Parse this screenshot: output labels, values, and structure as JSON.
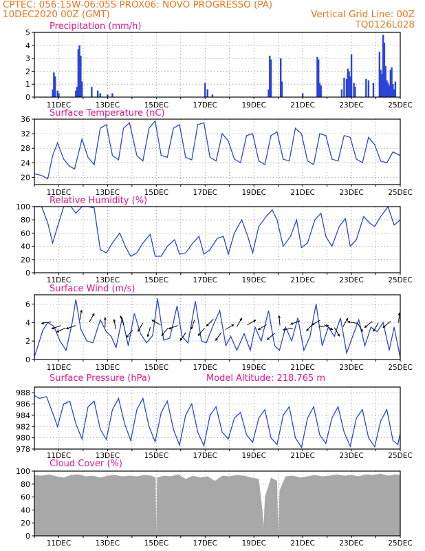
{
  "header": {
    "line1_left": "CPTEC:    056:15W-06:05S    PROX06: NOVO PROGRESSO (PA)",
    "line2_left": "10DEC2020 00Z (GMT)",
    "line2_right": "Vertical Grid Line: 00Z",
    "line3_right": "TQ0126L028"
  },
  "colors": {
    "header_text": "#e8761b",
    "panel_title": "#e0168c",
    "series_line": "#2b45d6",
    "precip_bars": "#2b45d6",
    "wind_arrows": "#000000",
    "cloud_fill": "#a8a8a8",
    "grid": "#9a9a9a"
  },
  "x_axis": {
    "start": "10DEC2020 00Z",
    "end": "25DEC2020 00Z",
    "tick_labels": [
      "11DEC",
      "13DEC",
      "15DEC",
      "17DEC",
      "19DEC",
      "21DEC",
      "23DEC",
      "25DEC"
    ],
    "tick_days": [
      1,
      3,
      5,
      7,
      9,
      11,
      13,
      15
    ],
    "vertical_grid": "daily at 00Z"
  },
  "chart_data": [
    {
      "type": "bar",
      "title": "Precipitation (mm/h)",
      "x_unit": "days since 10DEC2020 00Z",
      "ylim": [
        0,
        5
      ],
      "yticks": [
        0,
        1,
        2,
        3,
        4,
        5
      ],
      "grid": true,
      "x": [
        0.75,
        0.8,
        0.85,
        0.95,
        1.0,
        1.7,
        1.75,
        1.8,
        1.85,
        1.9,
        1.95,
        2.35,
        2.6,
        2.7,
        3.0,
        3.2,
        7.0,
        7.1,
        7.3,
        9.6,
        9.65,
        9.7,
        10.1,
        10.15,
        11.0,
        11.6,
        11.65,
        11.7,
        11.75,
        12.6,
        12.7,
        12.8,
        12.85,
        12.9,
        12.95,
        13.0,
        13.1,
        13.15,
        13.6,
        13.7,
        13.9,
        14.15,
        14.2,
        14.25,
        14.3,
        14.35,
        14.4,
        14.45,
        14.5,
        14.55,
        14.6,
        14.65,
        14.7,
        14.75,
        14.8
      ],
      "values": [
        0.6,
        1.9,
        1.6,
        0.5,
        0.3,
        0.5,
        0.8,
        3.7,
        4.0,
        3.2,
        1.2,
        0.8,
        0.5,
        0.3,
        0.2,
        0.3,
        1.1,
        0.6,
        0.2,
        0.6,
        3.2,
        2.9,
        3.0,
        1.2,
        0.3,
        3.1,
        2.9,
        1.1,
        0.9,
        0.6,
        1.5,
        1.4,
        2.2,
        2.0,
        1.6,
        3.3,
        1.1,
        0.8,
        1.4,
        1.3,
        1.1,
        3.5,
        2.1,
        1.8,
        4.8,
        4.2,
        2.4,
        1.3,
        1.1,
        0.9,
        2.1,
        2.3,
        1.0,
        0.6,
        1.2
      ]
    },
    {
      "type": "line",
      "title": "Surface Temperature (nC)",
      "x_unit": "days since 10DEC2020 00Z",
      "ylim": [
        18,
        36
      ],
      "yticks": [
        20,
        24,
        28,
        32,
        36
      ],
      "grid": true,
      "x": [
        0,
        0.3,
        0.55,
        0.75,
        0.95,
        1.2,
        1.45,
        1.65,
        1.95,
        2.2,
        2.45,
        2.7,
        2.95,
        3.2,
        3.45,
        3.65,
        3.9,
        4.2,
        4.45,
        4.7,
        4.95,
        5.2,
        5.45,
        5.7,
        5.95,
        6.2,
        6.45,
        6.7,
        6.95,
        7.2,
        7.45,
        7.7,
        7.95,
        8.2,
        8.45,
        8.7,
        8.95,
        9.2,
        9.45,
        9.7,
        9.95,
        10.2,
        10.45,
        10.7,
        10.95,
        11.2,
        11.45,
        11.7,
        11.95,
        12.2,
        12.45,
        12.7,
        12.95,
        13.2,
        13.45,
        13.7,
        13.95,
        14.2,
        14.45,
        14.7,
        15
      ],
      "values": [
        21,
        20.5,
        19.6,
        26,
        29.5,
        25,
        23,
        22.3,
        30.5,
        25.5,
        23.5,
        33.5,
        34.5,
        26,
        24.8,
        33.5,
        35.0,
        26,
        24.5,
        33.5,
        35.5,
        26,
        25.5,
        33.5,
        34.5,
        25.5,
        24.8,
        34.5,
        35.0,
        25.5,
        24.5,
        32,
        30.0,
        25.0,
        24.0,
        31.5,
        32.0,
        24.5,
        23.5,
        31.5,
        32.5,
        25.0,
        24.5,
        33.5,
        32.0,
        24.5,
        23.5,
        32.0,
        31.5,
        25.0,
        24.5,
        31.5,
        31.0,
        25.0,
        24.0,
        31.0,
        29.0,
        24.5,
        24.0,
        27.0,
        26.0
      ]
    },
    {
      "type": "line",
      "title": "Relative Humidity (%)",
      "x_unit": "days since 10DEC2020 00Z",
      "ylim": [
        0,
        100
      ],
      "yticks": [
        0,
        20,
        40,
        60,
        80,
        100
      ],
      "grid": true,
      "x": [
        0,
        0.3,
        0.55,
        0.75,
        0.95,
        1.2,
        1.5,
        1.7,
        1.95,
        2.2,
        2.45,
        2.7,
        2.95,
        3.2,
        3.5,
        3.75,
        3.95,
        4.2,
        4.45,
        4.75,
        4.95,
        5.2,
        5.45,
        5.75,
        5.95,
        6.2,
        6.5,
        6.75,
        6.95,
        7.2,
        7.5,
        7.75,
        7.95,
        8.2,
        8.5,
        8.75,
        8.95,
        9.2,
        9.5,
        9.75,
        9.95,
        10.2,
        10.5,
        10.75,
        10.95,
        11.2,
        11.5,
        11.75,
        11.95,
        12.2,
        12.5,
        12.75,
        12.95,
        13.2,
        13.5,
        13.75,
        13.95,
        14.2,
        14.5,
        14.75,
        15
      ],
      "values": [
        100,
        100,
        75,
        45,
        70,
        100,
        100,
        90,
        100,
        100,
        98,
        35,
        30,
        45,
        60,
        38,
        25,
        30,
        45,
        58,
        25,
        25,
        40,
        50,
        28,
        30,
        45,
        55,
        28,
        35,
        52,
        55,
        28,
        60,
        80,
        55,
        30,
        70,
        85,
        95,
        80,
        40,
        55,
        80,
        38,
        45,
        80,
        90,
        55,
        40,
        70,
        82,
        40,
        50,
        85,
        75,
        70,
        85,
        100,
        72,
        80
      ]
    },
    {
      "type": "line",
      "title": "Surface Wind (m/s)",
      "x_unit": "days since 10DEC2020 00Z",
      "ylim": [
        0,
        7
      ],
      "yticks": [
        0,
        2,
        4,
        6
      ],
      "grid": true,
      "x": [
        0,
        0.15,
        0.35,
        0.55,
        0.8,
        1.05,
        1.3,
        1.55,
        1.7,
        1.9,
        2.15,
        2.4,
        2.7,
        2.95,
        3.15,
        3.35,
        3.6,
        3.85,
        4.1,
        4.35,
        4.6,
        4.85,
        5.05,
        5.3,
        5.55,
        5.85,
        6.05,
        6.3,
        6.6,
        6.85,
        7.05,
        7.3,
        7.6,
        7.85,
        8.05,
        8.3,
        8.6,
        8.85,
        9.05,
        9.3,
        9.6,
        9.85,
        10.05,
        10.3,
        10.55,
        10.8,
        11.05,
        11.3,
        11.55,
        11.8,
        12.05,
        12.3,
        12.55,
        12.8,
        13.05,
        13.3,
        13.55,
        13.8,
        14.05,
        14.3,
        14.55,
        14.75,
        14.9,
        15
      ],
      "values": [
        0.3,
        1.5,
        3.2,
        4.0,
        3.6,
        2.0,
        1.0,
        4.0,
        6.5,
        3.3,
        2.0,
        1.8,
        4.3,
        3.0,
        2.5,
        1.3,
        4.5,
        1.5,
        5.0,
        2.8,
        1.8,
        2.6,
        6.6,
        2.1,
        2.3,
        5.8,
        2.5,
        1.8,
        6.3,
        2.0,
        1.8,
        3.5,
        5.3,
        1.5,
        2.5,
        1.0,
        2.8,
        1.0,
        3.5,
        2.0,
        5.3,
        1.5,
        1.0,
        3.5,
        2.0,
        4.5,
        1.0,
        2.5,
        6.0,
        1.5,
        3.5,
        2.5,
        4.5,
        0.7,
        2.5,
        4.3,
        1.5,
        3.5,
        3.0,
        4.0,
        1.0,
        3.5,
        1.5,
        0.2
      ],
      "arrows": {
        "x": [
          0.5,
          0.9,
          1.1,
          1.5,
          1.9,
          2.35,
          2.9,
          3.3,
          3.6,
          3.9,
          4.35,
          4.7,
          5.0,
          5.35,
          5.7,
          6.1,
          6.5,
          6.85,
          7.2,
          7.55,
          8.0,
          8.4,
          8.9,
          9.35,
          9.7,
          10.05,
          10.4,
          10.7,
          11.3,
          11.55,
          11.85,
          12.05,
          12.4,
          12.75,
          13.05,
          13.35,
          13.7,
          14.0,
          14.45,
          14.95
        ],
        "y": [
          4.0,
          3.5,
          3.2,
          3.5,
          4.8,
          4.5,
          4.0,
          3.8,
          4.2,
          2.8,
          3.5,
          3.0,
          4.0,
          3.0,
          3.5,
          2.5,
          3.8,
          3.0,
          4.0,
          2.5,
          3.5,
          4.0,
          4.0,
          3.5,
          2.5,
          4.2,
          3.3,
          4.0,
          3.5,
          4.0,
          3.6,
          3.5,
          3.0,
          4.0,
          4.0,
          3.5,
          3.8,
          3.5,
          3.8,
          4.5
        ],
        "dir_deg": [
          190,
          200,
          205,
          200,
          80,
          60,
          90,
          100,
          110,
          230,
          240,
          255,
          150,
          230,
          200,
          235,
          250,
          230,
          225,
          235,
          30,
          60,
          30,
          210,
          220,
          95,
          190,
          200,
          225,
          210,
          10,
          330,
          300,
          60,
          170,
          300,
          220,
          240,
          220,
          85
        ]
      }
    },
    {
      "type": "line",
      "title": "Surface Pressure (hPa)",
      "annotation": "Model Altitude: 218.765 m",
      "x_unit": "days since 10DEC2020 00Z",
      "ylim": [
        978,
        989
      ],
      "yticks": [
        978,
        980,
        982,
        984,
        986,
        988
      ],
      "grid": true,
      "x": [
        0,
        0.2,
        0.5,
        0.7,
        0.95,
        1.2,
        1.45,
        1.7,
        1.95,
        2.2,
        2.45,
        2.7,
        2.95,
        3.2,
        3.45,
        3.7,
        3.95,
        4.2,
        4.45,
        4.7,
        4.95,
        5.2,
        5.45,
        5.7,
        5.95,
        6.2,
        6.45,
        6.7,
        6.95,
        7.2,
        7.45,
        7.7,
        7.95,
        8.2,
        8.45,
        8.7,
        8.95,
        9.2,
        9.45,
        9.7,
        9.95,
        10.2,
        10.45,
        10.7,
        10.95,
        11.2,
        11.45,
        11.7,
        11.95,
        12.2,
        12.45,
        12.7,
        12.95,
        13.2,
        13.45,
        13.7,
        13.95,
        14.2,
        14.45,
        14.7,
        14.9,
        15
      ],
      "values": [
        987.5,
        987.0,
        987.3,
        985.0,
        982.0,
        986.0,
        986.5,
        982.5,
        979.8,
        985.5,
        986.5,
        981.5,
        979.7,
        985.0,
        987.0,
        982.5,
        979.5,
        985.0,
        987.0,
        982.0,
        979.3,
        984.5,
        986.5,
        981.5,
        978.7,
        984.0,
        986.0,
        981.0,
        978.6,
        984.0,
        985.5,
        981.0,
        979.8,
        983.5,
        984.5,
        980.5,
        979.2,
        983.5,
        985.0,
        980.0,
        978.8,
        984.0,
        985.5,
        980.0,
        978.3,
        983.5,
        985.5,
        980.5,
        979.0,
        983.5,
        985.5,
        981.0,
        978.5,
        983.5,
        985.0,
        980.0,
        978.4,
        983.0,
        985.0,
        979.5,
        978.8,
        980.8
      ]
    },
    {
      "type": "area",
      "title": "Cloud Cover (%)",
      "x_unit": "days since 10DEC2020 00Z",
      "ylim": [
        0,
        100
      ],
      "yticks": [
        0,
        20,
        40,
        60,
        80,
        100
      ],
      "grid": true,
      "x": [
        0,
        0.3,
        0.6,
        0.9,
        1.2,
        1.5,
        1.8,
        2.1,
        2.4,
        2.7,
        3.0,
        3.3,
        3.6,
        3.9,
        4.2,
        4.5,
        4.8,
        4.97,
        5.0,
        5.03,
        5.3,
        5.6,
        5.9,
        6.2,
        6.5,
        6.8,
        7.1,
        7.4,
        7.7,
        8.0,
        8.3,
        8.6,
        8.9,
        9.2,
        9.35,
        9.4,
        9.45,
        9.7,
        9.95,
        10.0,
        10.05,
        10.3,
        10.6,
        10.9,
        11.2,
        11.5,
        11.8,
        12.1,
        12.4,
        12.7,
        13.0,
        13.3,
        13.6,
        13.9,
        14.2,
        14.5,
        14.8,
        15
      ],
      "values": [
        94,
        93,
        95,
        92,
        90,
        94,
        95,
        92,
        93,
        90,
        93,
        94,
        92,
        93,
        92,
        94,
        93,
        90,
        2,
        90,
        93,
        92,
        95,
        88,
        93,
        90,
        92,
        85,
        93,
        92,
        94,
        93,
        90,
        88,
        40,
        15,
        60,
        90,
        85,
        5,
        70,
        92,
        93,
        90,
        92,
        94,
        92,
        93,
        95,
        93,
        94,
        92,
        95,
        94,
        96,
        93,
        95,
        94
      ]
    }
  ]
}
